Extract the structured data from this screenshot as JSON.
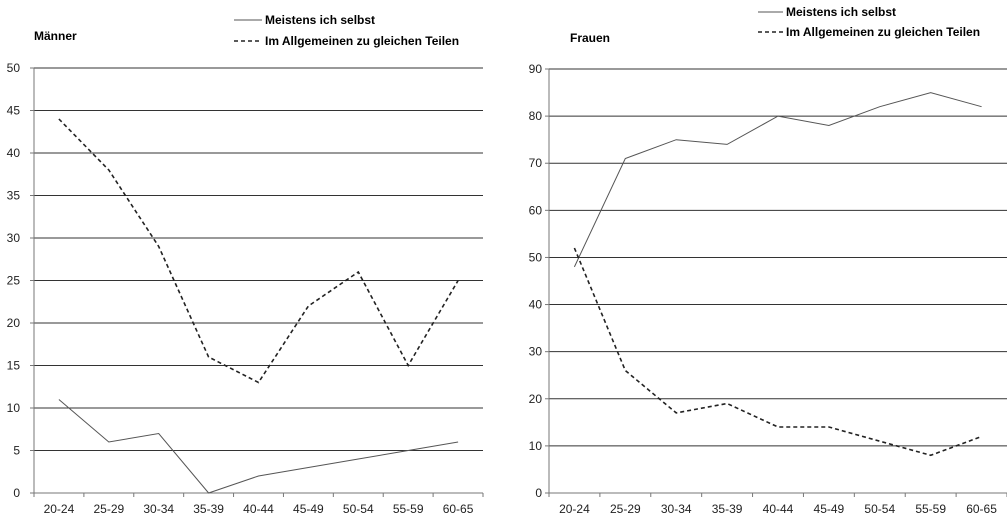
{
  "colors": {
    "line": "#555555",
    "grid": "#333333",
    "axis": "#777777",
    "text": "#1a1a1a"
  },
  "chart_data": [
    {
      "type": "line",
      "title": "Männer",
      "categories": [
        "20-24",
        "25-29",
        "30-34",
        "35-39",
        "40-44",
        "45-49",
        "50-54",
        "55-59",
        "60-65"
      ],
      "ylim": [
        0,
        50
      ],
      "yticks": [
        0,
        5,
        10,
        15,
        20,
        25,
        30,
        35,
        40,
        45,
        50
      ],
      "grid": true,
      "legend_position": "top-right",
      "series": [
        {
          "name": "Meistens ich selbst",
          "style": "solid",
          "values": [
            11,
            6,
            7,
            0,
            2,
            3,
            4,
            5,
            6
          ]
        },
        {
          "name": "Im Allgemeinen zu gleichen Teilen",
          "style": "dashed",
          "values": [
            44,
            38,
            29,
            16,
            13,
            22,
            26,
            15,
            25
          ]
        }
      ]
    },
    {
      "type": "line",
      "title": "Frauen",
      "categories": [
        "20-24",
        "25-29",
        "30-34",
        "35-39",
        "40-44",
        "45-49",
        "50-54",
        "55-59",
        "60-65"
      ],
      "ylim": [
        0,
        90
      ],
      "yticks": [
        0,
        10,
        20,
        30,
        40,
        50,
        60,
        70,
        80,
        90
      ],
      "grid": true,
      "legend_position": "top-right",
      "series": [
        {
          "name": "Meistens ich selbst",
          "style": "solid",
          "values": [
            48,
            71,
            75,
            74,
            80,
            78,
            82,
            85,
            82
          ]
        },
        {
          "name": "Im Allgemeinen zu gleichen Teilen",
          "style": "dashed",
          "values": [
            52,
            26,
            17,
            19,
            14,
            14,
            11,
            8,
            12
          ]
        }
      ]
    }
  ]
}
